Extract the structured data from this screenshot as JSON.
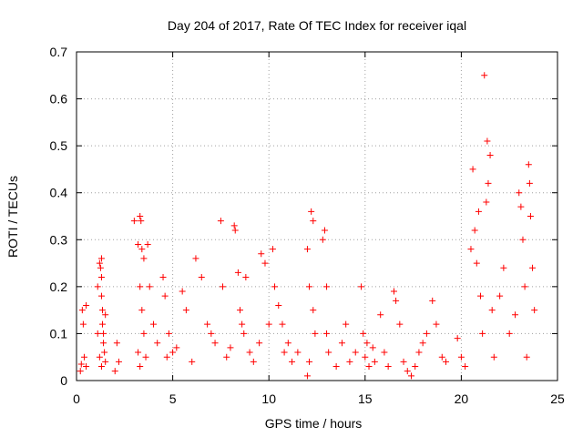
{
  "chart_data": {
    "type": "scatter",
    "title": "Day 204 of 2017, Rate Of TEC Index for receiver iqal",
    "xlabel": "GPS time / hours",
    "ylabel": "ROTI / TECUs",
    "xlim": [
      0,
      25
    ],
    "ylim": [
      0,
      0.7
    ],
    "xticks": [
      0,
      5,
      10,
      15,
      20,
      25
    ],
    "yticks": [
      0,
      0.1,
      0.2,
      0.3,
      0.4,
      0.5,
      0.6,
      0.7
    ],
    "grid": true,
    "marker": "plus",
    "color": "#ff0000",
    "points": [
      [
        0.2,
        0.02
      ],
      [
        0.25,
        0.035
      ],
      [
        0.3,
        0.15
      ],
      [
        0.35,
        0.12
      ],
      [
        0.4,
        0.05
      ],
      [
        0.5,
        0.03
      ],
      [
        0.5,
        0.16
      ],
      [
        1.1,
        0.2
      ],
      [
        1.2,
        0.25
      ],
      [
        1.25,
        0.24
      ],
      [
        1.3,
        0.22
      ],
      [
        1.3,
        0.26
      ],
      [
        1.3,
        0.18
      ],
      [
        1.35,
        0.15
      ],
      [
        1.35,
        0.12
      ],
      [
        1.4,
        0.1
      ],
      [
        1.4,
        0.08
      ],
      [
        1.45,
        0.06
      ],
      [
        1.5,
        0.04
      ],
      [
        1.2,
        0.05
      ],
      [
        1.1,
        0.1
      ],
      [
        1.5,
        0.14
      ],
      [
        1.3,
        0.03
      ],
      [
        2.0,
        0.02
      ],
      [
        2.1,
        0.08
      ],
      [
        2.2,
        0.04
      ],
      [
        3.0,
        0.34
      ],
      [
        3.2,
        0.29
      ],
      [
        3.3,
        0.35
      ],
      [
        3.35,
        0.34
      ],
      [
        3.4,
        0.28
      ],
      [
        3.5,
        0.26
      ],
      [
        3.3,
        0.2
      ],
      [
        3.4,
        0.15
      ],
      [
        3.5,
        0.1
      ],
      [
        3.6,
        0.05
      ],
      [
        3.2,
        0.06
      ],
      [
        3.3,
        0.03
      ],
      [
        3.7,
        0.29
      ],
      [
        3.8,
        0.2
      ],
      [
        4.0,
        0.12
      ],
      [
        4.2,
        0.08
      ],
      [
        4.5,
        0.22
      ],
      [
        4.6,
        0.18
      ],
      [
        4.7,
        0.05
      ],
      [
        4.8,
        0.1
      ],
      [
        5.0,
        0.06
      ],
      [
        5.2,
        0.07
      ],
      [
        5.5,
        0.19
      ],
      [
        5.7,
        0.15
      ],
      [
        6.0,
        0.04
      ],
      [
        6.2,
        0.26
      ],
      [
        6.5,
        0.22
      ],
      [
        6.8,
        0.12
      ],
      [
        7.0,
        0.1
      ],
      [
        7.2,
        0.08
      ],
      [
        7.5,
        0.34
      ],
      [
        7.6,
        0.2
      ],
      [
        7.8,
        0.05
      ],
      [
        8.0,
        0.07
      ],
      [
        8.2,
        0.33
      ],
      [
        8.25,
        0.32
      ],
      [
        8.4,
        0.23
      ],
      [
        8.5,
        0.15
      ],
      [
        8.6,
        0.12
      ],
      [
        8.7,
        0.1
      ],
      [
        8.8,
        0.22
      ],
      [
        9.0,
        0.06
      ],
      [
        9.2,
        0.04
      ],
      [
        9.5,
        0.08
      ],
      [
        9.6,
        0.27
      ],
      [
        9.8,
        0.25
      ],
      [
        10.0,
        0.12
      ],
      [
        10.2,
        0.28
      ],
      [
        10.3,
        0.2
      ],
      [
        10.5,
        0.16
      ],
      [
        10.7,
        0.12
      ],
      [
        10.8,
        0.06
      ],
      [
        11.0,
        0.08
      ],
      [
        11.2,
        0.04
      ],
      [
        11.5,
        0.06
      ],
      [
        12.0,
        0.28
      ],
      [
        12.1,
        0.2
      ],
      [
        12.2,
        0.36
      ],
      [
        12.3,
        0.34
      ],
      [
        12.3,
        0.15
      ],
      [
        12.4,
        0.1
      ],
      [
        12.1,
        0.04
      ],
      [
        12.0,
        0.01
      ],
      [
        12.8,
        0.3
      ],
      [
        12.9,
        0.32
      ],
      [
        13.0,
        0.2
      ],
      [
        13.0,
        0.1
      ],
      [
        13.1,
        0.06
      ],
      [
        13.5,
        0.03
      ],
      [
        13.8,
        0.08
      ],
      [
        14.0,
        0.12
      ],
      [
        14.2,
        0.04
      ],
      [
        14.5,
        0.06
      ],
      [
        14.8,
        0.2
      ],
      [
        14.9,
        0.1
      ],
      [
        15.0,
        0.05
      ],
      [
        15.1,
        0.08
      ],
      [
        15.2,
        0.03
      ],
      [
        15.4,
        0.07
      ],
      [
        15.5,
        0.04
      ],
      [
        15.8,
        0.14
      ],
      [
        16.0,
        0.06
      ],
      [
        16.2,
        0.03
      ],
      [
        16.5,
        0.19
      ],
      [
        16.6,
        0.17
      ],
      [
        16.8,
        0.12
      ],
      [
        17.0,
        0.04
      ],
      [
        17.2,
        0.02
      ],
      [
        17.4,
        0.01
      ],
      [
        17.6,
        0.03
      ],
      [
        17.8,
        0.06
      ],
      [
        18.0,
        0.08
      ],
      [
        18.2,
        0.1
      ],
      [
        18.5,
        0.17
      ],
      [
        18.7,
        0.12
      ],
      [
        19.0,
        0.05
      ],
      [
        19.2,
        0.04
      ],
      [
        19.8,
        0.09
      ],
      [
        20.0,
        0.05
      ],
      [
        20.2,
        0.03
      ],
      [
        20.5,
        0.28
      ],
      [
        20.6,
        0.45
      ],
      [
        20.7,
        0.32
      ],
      [
        20.8,
        0.25
      ],
      [
        20.9,
        0.36
      ],
      [
        21.0,
        0.18
      ],
      [
        21.1,
        0.1
      ],
      [
        21.2,
        0.65
      ],
      [
        21.3,
        0.38
      ],
      [
        21.35,
        0.51
      ],
      [
        21.4,
        0.42
      ],
      [
        21.5,
        0.48
      ],
      [
        21.6,
        0.15
      ],
      [
        21.7,
        0.05
      ],
      [
        22.0,
        0.18
      ],
      [
        22.2,
        0.24
      ],
      [
        22.5,
        0.1
      ],
      [
        22.8,
        0.14
      ],
      [
        23.0,
        0.4
      ],
      [
        23.1,
        0.37
      ],
      [
        23.2,
        0.3
      ],
      [
        23.3,
        0.2
      ],
      [
        23.4,
        0.05
      ],
      [
        23.5,
        0.46
      ],
      [
        23.55,
        0.42
      ],
      [
        23.6,
        0.35
      ],
      [
        23.7,
        0.24
      ],
      [
        23.8,
        0.15
      ]
    ]
  }
}
